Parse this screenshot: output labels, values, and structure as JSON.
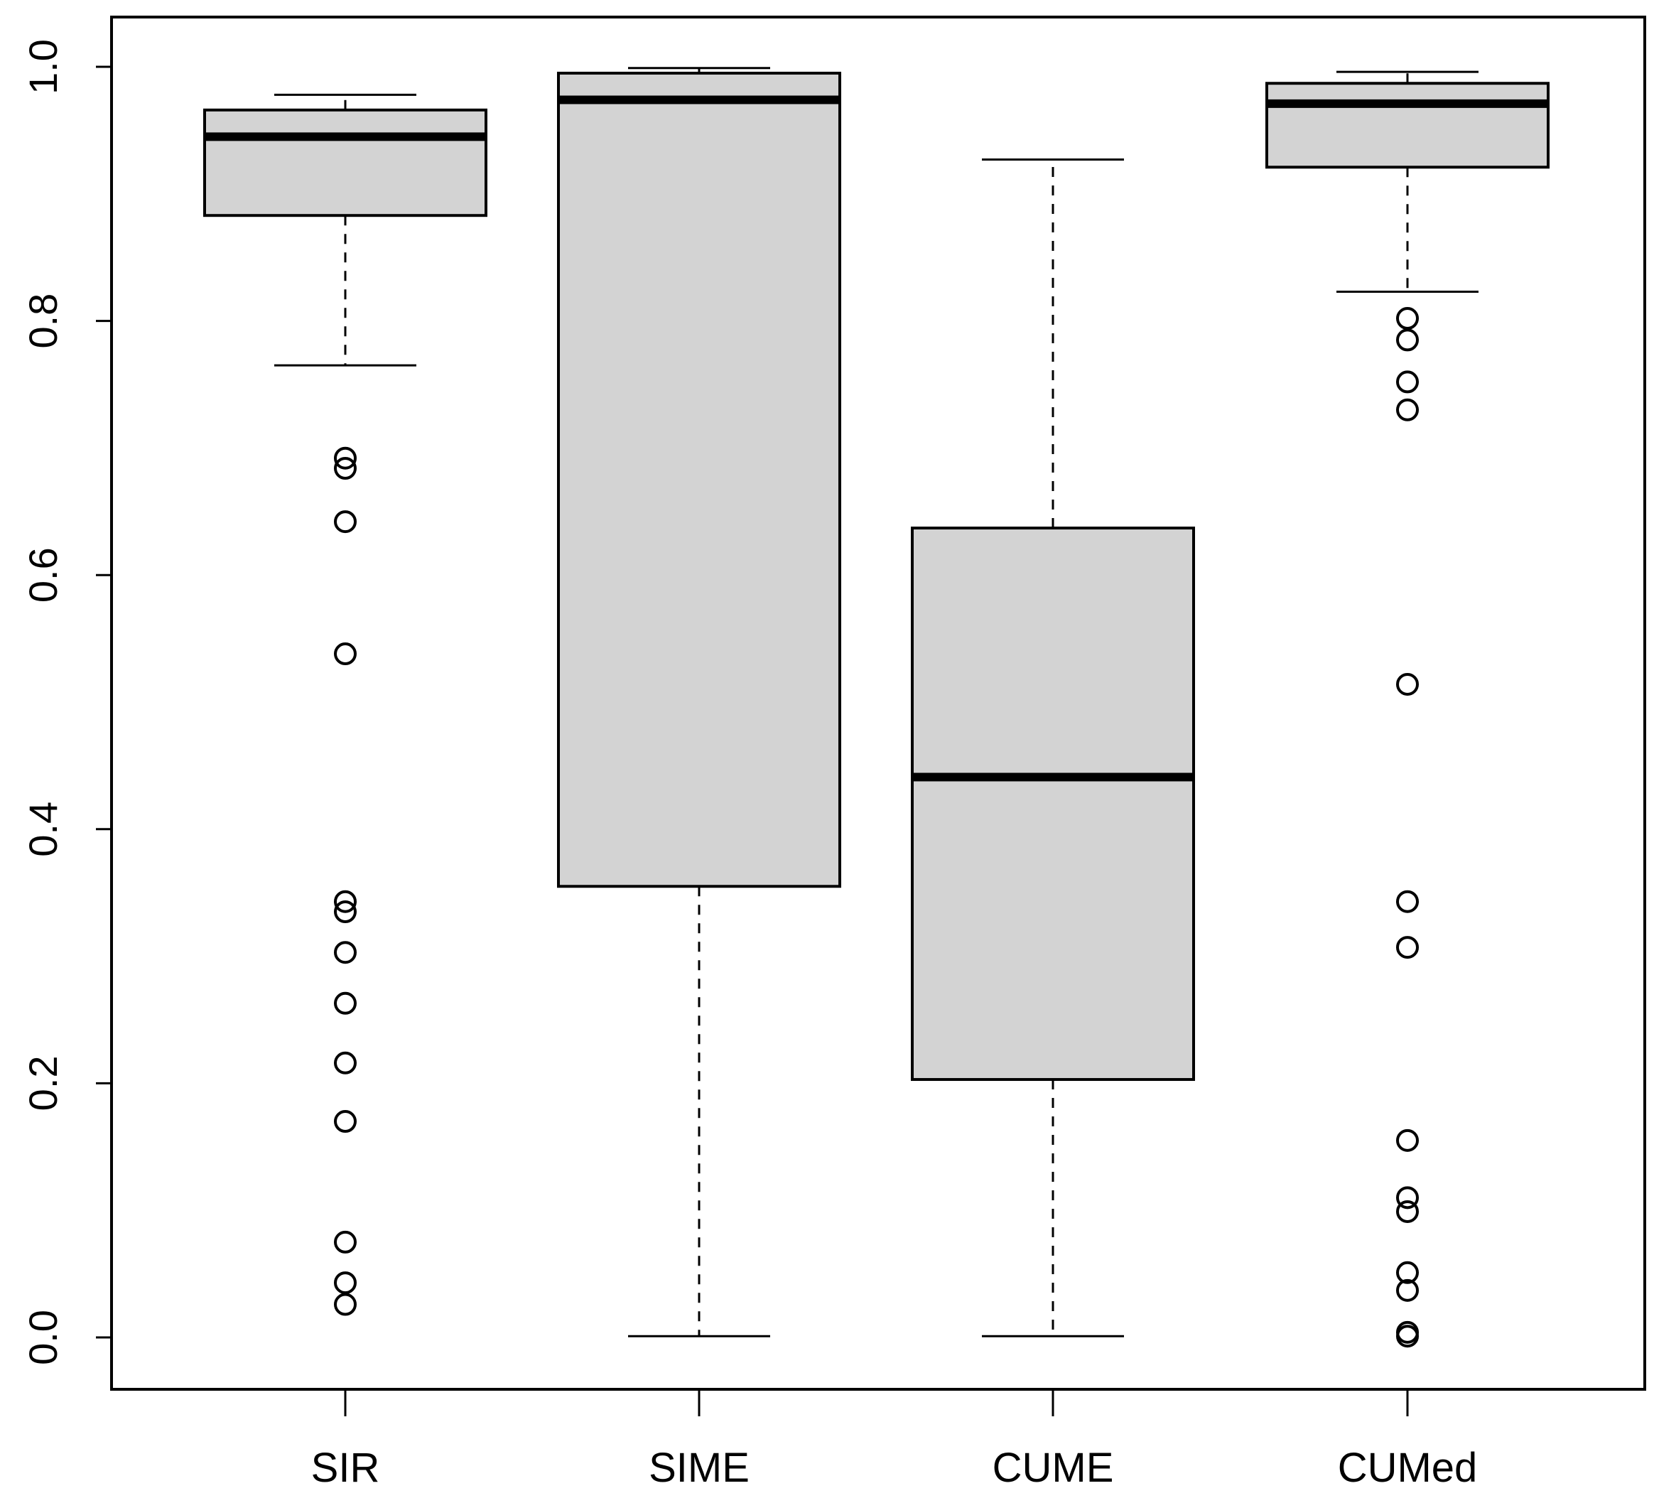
{
  "chart_data": {
    "type": "boxplot",
    "title": "",
    "xlabel": "",
    "ylabel": "",
    "ylim": [
      -0.04,
      1.04
    ],
    "yticks": [
      "0.0",
      "0.2",
      "0.4",
      "0.6",
      "0.8",
      "1.0"
    ],
    "categories": [
      "SIR",
      "SIME",
      "CUME",
      "CUMed"
    ],
    "box_fill": "#d3d3d3",
    "line_color": "#000000",
    "boxes": [
      {
        "name": "SIR",
        "whisker_low": 0.765,
        "q1": 0.883,
        "median": 0.945,
        "q3": 0.966,
        "whisker_high": 0.978,
        "outliers": [
          0.692,
          0.684,
          0.642,
          0.538,
          0.343,
          0.335,
          0.303,
          0.263,
          0.216,
          0.17,
          0.075,
          0.043,
          0.026
        ]
      },
      {
        "name": "SIME",
        "whisker_low": 0.001,
        "q1": 0.355,
        "median": 0.974,
        "q3": 0.995,
        "whisker_high": 0.999,
        "outliers": []
      },
      {
        "name": "CUME",
        "whisker_low": 0.001,
        "q1": 0.203,
        "median": 0.441,
        "q3": 0.637,
        "whisker_high": 0.927,
        "outliers": []
      },
      {
        "name": "CUMed",
        "whisker_low": 0.823,
        "q1": 0.921,
        "median": 0.971,
        "q3": 0.987,
        "whisker_high": 0.996,
        "outliers": [
          0.802,
          0.785,
          0.752,
          0.73,
          0.514,
          0.343,
          0.307,
          0.155,
          0.11,
          0.099,
          0.051,
          0.037,
          0.004,
          0.001
        ]
      }
    ]
  }
}
